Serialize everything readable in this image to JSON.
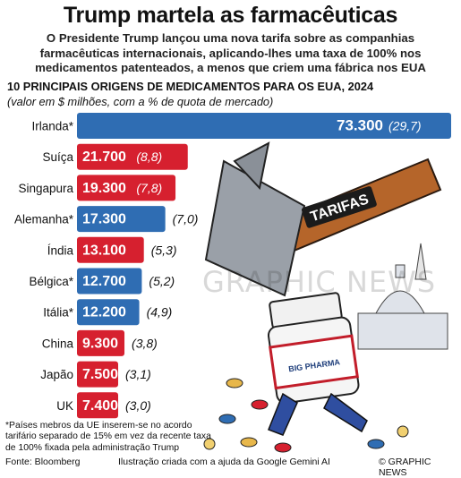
{
  "header": {
    "title": "Trump martela as farmacêuticas",
    "subtitle": "O Presidente Trump lançou uma nova tarifa sobre as companhias farmacêuticas internacionais, aplicando-lhes uma taxa de 100% nos medicamentos patenteados, a menos que criem uma fábrica nos EUA"
  },
  "chart_data": {
    "type": "bar",
    "orientation": "horizontal",
    "title": "10 PRINCIPAIS ORIGENS DE MEDICAMENTOS PARA OS EUA, 2024",
    "subtitle": "(valor em $ milhões, com a % de quota de mercado)",
    "categories": [
      "Irlanda*",
      "Suíça",
      "Singapura",
      "Alemanha*",
      "Índia",
      "Bélgica*",
      "Itália*",
      "China",
      "Japão",
      "UK"
    ],
    "values": [
      73300,
      21700,
      19300,
      17300,
      13100,
      12700,
      12200,
      9300,
      7500,
      7400
    ],
    "value_labels": [
      "73.300",
      "21.700",
      "19.300",
      "17.300",
      "13.100",
      "12.700",
      "12.200",
      "9.300",
      "7.500",
      "7.400"
    ],
    "share_labels": [
      "(29,7)",
      "(8,8)",
      "(7,8)",
      "(7,0)",
      "(5,3)",
      "(5,2)",
      "(4,9)",
      "(3,8)",
      "(3,1)",
      "(3,0)"
    ],
    "share_percent": [
      29.7,
      8.8,
      7.8,
      7.0,
      5.3,
      5.2,
      4.9,
      3.8,
      3.1,
      3.0
    ],
    "eu_member": [
      true,
      false,
      false,
      true,
      false,
      true,
      true,
      false,
      false,
      false
    ],
    "colors": {
      "eu": "#2f6db3",
      "non_eu": "#d6202f"
    }
  },
  "illustration": {
    "hammer_label": "TARIFAS",
    "bottle_label": "BIG PHARMA",
    "watermark": "GRAPHIC NEWS"
  },
  "footer": {
    "footnote": "*Países mebros da UE inserem-se no acordo tarifário separado de 15% em vez da recente taxa de 100% fixada pela administração Trump",
    "source": "Fonte: Bloomberg",
    "credit": "Ilustração criada com a ajuda da Google Gemini AI",
    "copyright": "© GRAPHIC NEWS"
  }
}
